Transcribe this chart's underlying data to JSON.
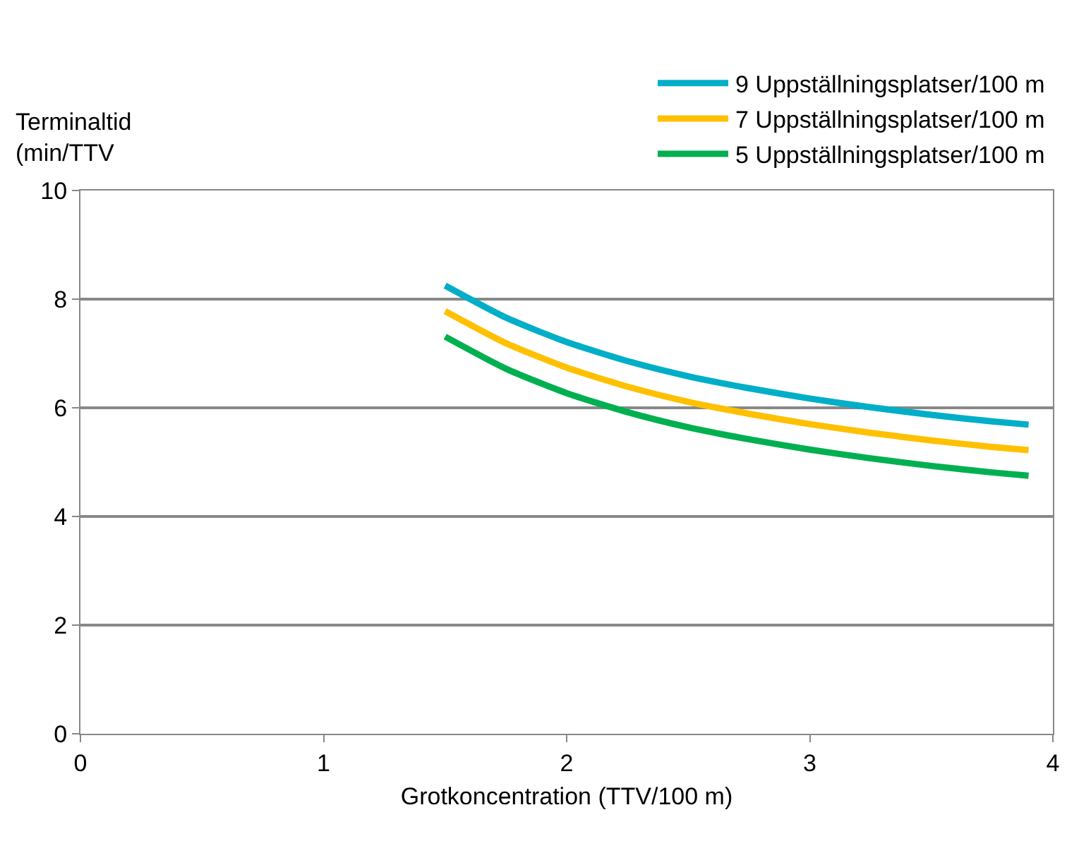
{
  "chart_data": {
    "type": "line",
    "xlabel": "Grotkoncentration (TTV/100 m)",
    "ylabel": "Terminaltid (min/TTV",
    "x": [
      1.5,
      1.75,
      2,
      2.25,
      2.5,
      2.75,
      3,
      3.25,
      3.5,
      3.75,
      3.9
    ],
    "series": [
      {
        "name": "9 Uppställningsplatser/100 m",
        "color": "#00aec7",
        "values": [
          8.25,
          7.66,
          7.21,
          6.86,
          6.58,
          6.36,
          6.17,
          6.01,
          5.87,
          5.75,
          5.69
        ]
      },
      {
        "name": "7 Uppställningsplatser/100 m",
        "color": "#ffc000",
        "values": [
          7.78,
          7.19,
          6.74,
          6.39,
          6.11,
          5.89,
          5.7,
          5.54,
          5.4,
          5.28,
          5.22
        ]
      },
      {
        "name": "5 Uppställningsplatser/100 m",
        "color": "#00b050",
        "values": [
          7.31,
          6.72,
          6.27,
          5.92,
          5.64,
          5.42,
          5.23,
          5.07,
          4.93,
          4.81,
          4.75
        ]
      }
    ],
    "xlim": [
      0,
      4
    ],
    "xticks": [
      0,
      1,
      2,
      3,
      4
    ],
    "ylim": [
      0,
      10
    ],
    "yticks": [
      0,
      2,
      4,
      6,
      8,
      10
    ],
    "grid": "y",
    "legend": "top right",
    "marker": "none",
    "line_style": "solid"
  }
}
